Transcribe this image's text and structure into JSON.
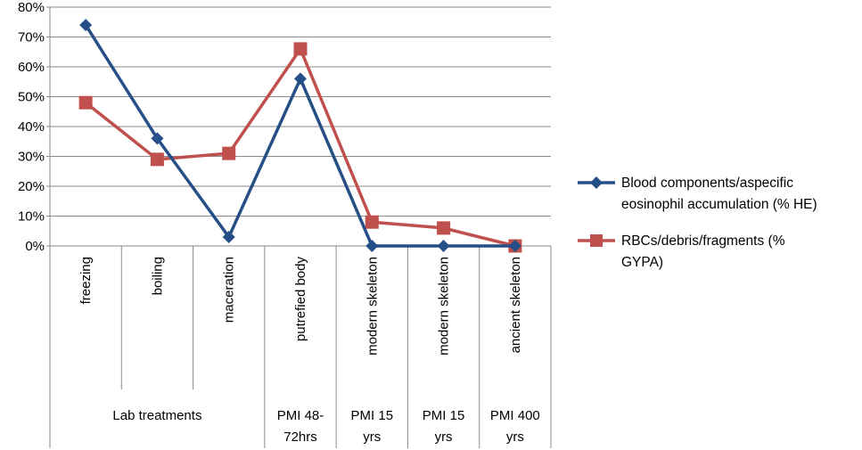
{
  "chart_data": {
    "type": "line",
    "categories": [
      "freezing",
      "boiling",
      "maceration",
      "putrefied body",
      "modern skeleton",
      "modern skeleton",
      "ancient skeleton"
    ],
    "category_groups": [
      {
        "label_lines": [
          "Lab treatments"
        ],
        "span": 3
      },
      {
        "label_lines": [
          "PMI 48-",
          "72hrs"
        ],
        "span": 1
      },
      {
        "label_lines": [
          "PMI 15",
          "yrs"
        ],
        "span": 1
      },
      {
        "label_lines": [
          "PMI 15",
          "yrs"
        ],
        "span": 1
      },
      {
        "label_lines": [
          "PMI 400",
          "yrs"
        ],
        "span": 1
      }
    ],
    "series": [
      {
        "name": "Blood components/aspecific eosinophil accumulation (% HE)",
        "legend_lines": [
          "Blood components/aspecific",
          "eosinophil accumulation (% HE)"
        ],
        "values": [
          74,
          36,
          3,
          56,
          0,
          0,
          0
        ],
        "color": "#254f86",
        "marker": "diamond"
      },
      {
        "name": "RBCs/debris/fragments (% GYPA)",
        "legend_lines": [
          "RBCs/debris/fragments (%",
          "GYPA)"
        ],
        "values": [
          48,
          29,
          31,
          66,
          8,
          6,
          0
        ],
        "color": "#c0504d",
        "marker": "square"
      }
    ],
    "y_ticks": [
      "0%",
      "10%",
      "20%",
      "30%",
      "40%",
      "50%",
      "60%",
      "70%",
      "80%"
    ],
    "ylim": [
      0,
      80
    ],
    "y_unit": "%",
    "grid": true,
    "legend_position": "right"
  }
}
